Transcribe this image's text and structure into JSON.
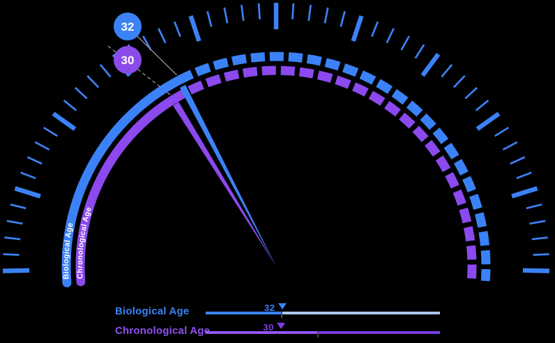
{
  "chart_data": {
    "type": "gauge",
    "title": "",
    "series": [
      {
        "name": "Biological Age",
        "value": 32,
        "color": "#3b82f6"
      },
      {
        "name": "Chronological Age",
        "value": 30,
        "color": "#8b49ee"
      }
    ],
    "scale": {
      "min": 0,
      "max": 90,
      "start_angle_deg": 185,
      "end_angle_deg": -5
    },
    "ticks": {
      "count": 51,
      "major_every": 5,
      "color": "#3b82f6"
    },
    "arc_labels": [
      "Biological Age",
      "Chronological Age"
    ],
    "badges": [
      {
        "value": "32",
        "color": "#3b82f6"
      },
      {
        "value": "30",
        "color": "#8b4be8"
      }
    ],
    "connector_color": "#8f8f8f",
    "legend": {
      "rows": [
        {
          "label": "Biological Age",
          "value": "32",
          "label_color": "#3b82f6",
          "line_left_color": "#3b82f6",
          "line_right_color": "#abc6ee",
          "marker_color": "#3b82f6",
          "marker_pct": 32,
          "split_pct": 32,
          "tick_pct": 32,
          "tick_color": "#44506b"
        },
        {
          "label": "Chronological Age",
          "value": "30",
          "label_color": "#9050f0",
          "line_left_color": "#9455f2",
          "line_right_color": "#7c3ce8",
          "marker_color": "#7c3ce8",
          "marker_pct": 31.5,
          "split_pct": 47.6,
          "tick_pct": 47.6,
          "tick_color": "#4a4458"
        }
      ]
    }
  }
}
